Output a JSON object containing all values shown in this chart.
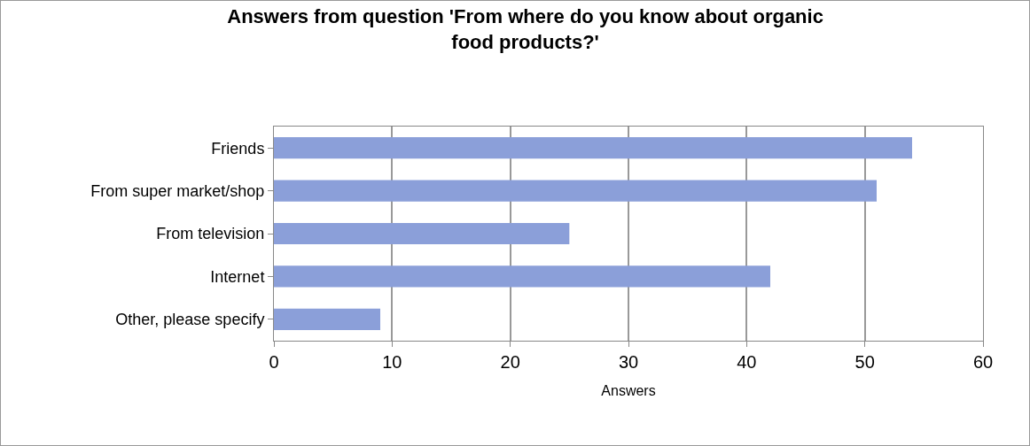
{
  "chart_data": {
    "type": "bar",
    "orientation": "horizontal",
    "title": "Answers from question 'From where do you know about organic food products?'",
    "xlabel": "Answers",
    "categories": [
      "Friends",
      "From super market/shop",
      "From television",
      "Internet",
      "Other, please specify"
    ],
    "values": [
      54,
      51,
      25,
      42,
      9
    ],
    "color": "#8b9fd9",
    "xlim": [
      0,
      60
    ],
    "xticks": [
      0,
      10,
      20,
      30,
      40,
      50,
      60
    ],
    "grid": "x"
  }
}
